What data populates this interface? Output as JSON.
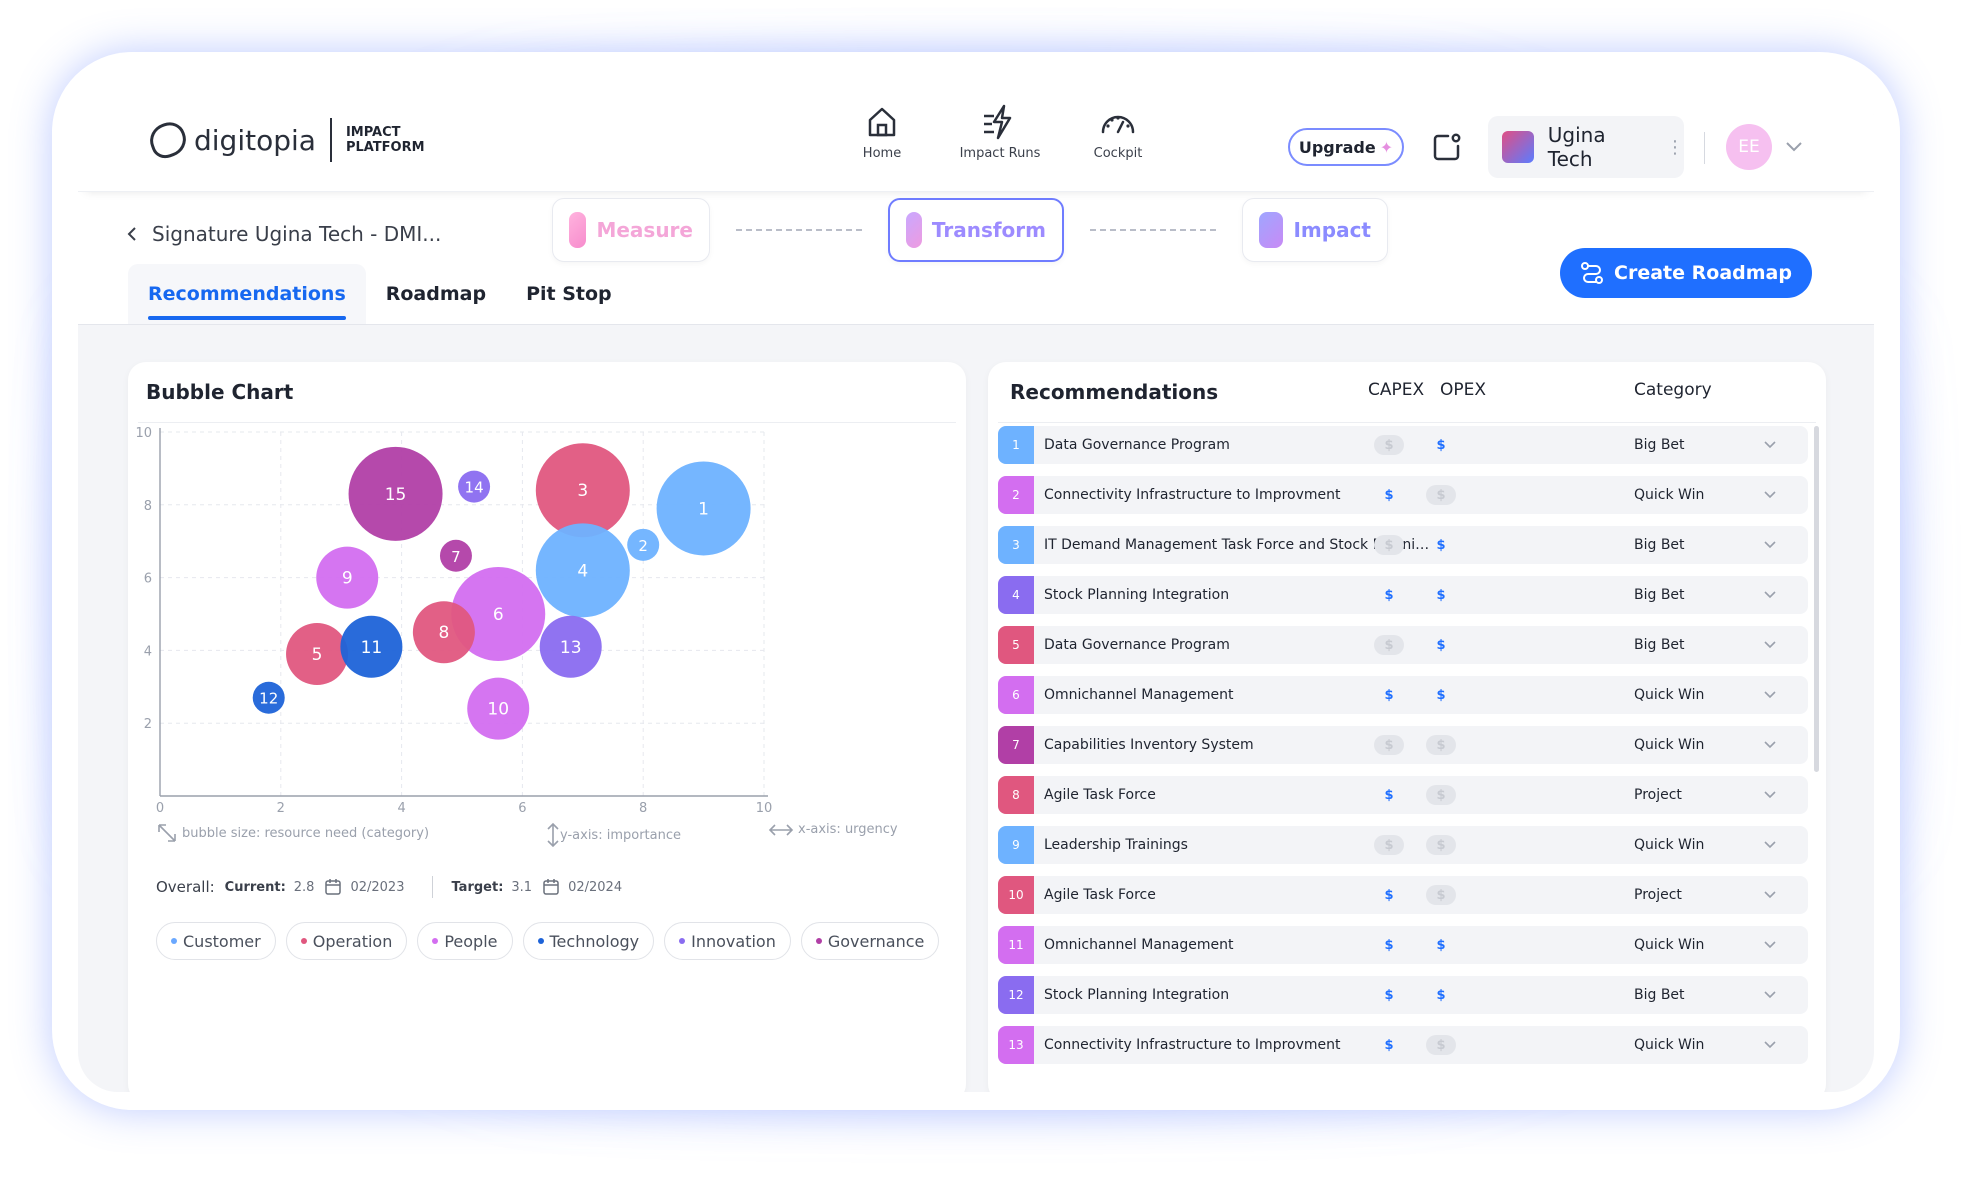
{
  "brand": {
    "name": "digitopia",
    "sub1": "IMPACT",
    "sub2": "PLATFORM"
  },
  "nav": [
    {
      "label": "Home",
      "icon": "home-icon"
    },
    {
      "label": "Impact Runs",
      "icon": "impact-runs-icon"
    },
    {
      "label": "Cockpit",
      "icon": "gauge-icon"
    }
  ],
  "header": {
    "upgrade_label": "Upgrade",
    "org_name": "Ugina Tech",
    "avatar_initials": "EE"
  },
  "breadcrumb": {
    "back_label": "Signature Ugina Tech - DMI..."
  },
  "stepper": {
    "measure": "Measure",
    "transform": "Transform",
    "impact": "Impact"
  },
  "create_roadmap_label": "Create Roadmap",
  "tabs": [
    {
      "label": "Recommendations"
    },
    {
      "label": "Roadmap"
    },
    {
      "label": "Pit Stop"
    }
  ],
  "chart_panel": {
    "title": "Bubble Chart",
    "hint_size": "bubble size: resource need (category)",
    "hint_y": "y-axis: importance",
    "hint_x": "x-axis: urgency",
    "overall_label": "Overall:",
    "current_label": "Current:",
    "current_value": "2.8",
    "current_date": "02/2023",
    "target_label": "Target:",
    "target_value": "3.1",
    "target_date": "02/2024",
    "filters": [
      {
        "label": "Customer",
        "color": "#6aa8ff"
      },
      {
        "label": "Operation",
        "color": "#e0577f"
      },
      {
        "label": "People",
        "color": "#d36ef0"
      },
      {
        "label": "Technology",
        "color": "#1d63d8"
      },
      {
        "label": "Innovation",
        "color": "#8a6cf0"
      },
      {
        "label": "Governance",
        "color": "#b13fa6"
      }
    ]
  },
  "chart_data": {
    "type": "scatter",
    "xlim": [
      0,
      10
    ],
    "ylim": [
      0,
      10
    ],
    "xticks": [
      0,
      2,
      4,
      6,
      8,
      10
    ],
    "yticks": [
      2,
      4,
      6,
      8,
      10
    ],
    "grid": true,
    "points": [
      {
        "id": "1",
        "x": 9.0,
        "y": 7.9,
        "size": 3,
        "color": "#6eb2ff"
      },
      {
        "id": "2",
        "x": 8.0,
        "y": 6.9,
        "size": 1,
        "color": "#6eb2ff"
      },
      {
        "id": "3",
        "x": 7.0,
        "y": 8.4,
        "size": 3,
        "color": "#e0577f"
      },
      {
        "id": "4",
        "x": 7.0,
        "y": 6.2,
        "size": 3,
        "color": "#6eb2ff"
      },
      {
        "id": "5",
        "x": 2.6,
        "y": 3.9,
        "size": 2,
        "color": "#e0577f"
      },
      {
        "id": "6",
        "x": 5.6,
        "y": 5.0,
        "size": 3,
        "color": "#d36ef0"
      },
      {
        "id": "7",
        "x": 4.9,
        "y": 6.6,
        "size": 1,
        "color": "#b13fa6"
      },
      {
        "id": "8",
        "x": 4.7,
        "y": 4.5,
        "size": 2,
        "color": "#e0577f"
      },
      {
        "id": "9",
        "x": 3.1,
        "y": 6.0,
        "size": 2,
        "color": "#d36ef0"
      },
      {
        "id": "10",
        "x": 5.6,
        "y": 2.4,
        "size": 2,
        "color": "#d36ef0"
      },
      {
        "id": "11",
        "x": 3.5,
        "y": 4.1,
        "size": 2,
        "color": "#1d63d8"
      },
      {
        "id": "12",
        "x": 1.8,
        "y": 2.7,
        "size": 1,
        "color": "#1d63d8"
      },
      {
        "id": "13",
        "x": 6.8,
        "y": 4.1,
        "size": 2,
        "color": "#8a6cf0"
      },
      {
        "id": "14",
        "x": 5.2,
        "y": 8.5,
        "size": 1,
        "color": "#8a6cf0"
      },
      {
        "id": "15",
        "x": 3.9,
        "y": 8.3,
        "size": 3,
        "color": "#b13fa6"
      }
    ]
  },
  "rec_panel": {
    "title": "Recommendations",
    "col_capex": "CAPEX",
    "col_opex": "OPEX",
    "col_category": "Category",
    "rows": [
      {
        "num": "1",
        "name": "Data Governance Program",
        "capex": false,
        "opex": true,
        "category": "Big Bet",
        "color": "#6eb2ff"
      },
      {
        "num": "2",
        "name": "Connectivity Infrastructure to Improvment",
        "capex": true,
        "opex": false,
        "category": "Quick Win",
        "color": "#d36ef0"
      },
      {
        "num": "3",
        "name": "IT Demand Management Task Force and Stock Planning I...",
        "capex": false,
        "opex": true,
        "category": "Big Bet",
        "color": "#6eb2ff"
      },
      {
        "num": "4",
        "name": "Stock Planning Integration",
        "capex": true,
        "opex": true,
        "category": "Big Bet",
        "color": "#8a6cf0"
      },
      {
        "num": "5",
        "name": "Data Governance Program",
        "capex": false,
        "opex": true,
        "category": "Big Bet",
        "color": "#e0577f"
      },
      {
        "num": "6",
        "name": "Omnichannel Management",
        "capex": true,
        "opex": true,
        "category": "Quick Win",
        "color": "#d36ef0"
      },
      {
        "num": "7",
        "name": "Capabilities Inventory System",
        "capex": false,
        "opex": false,
        "category": "Quick Win",
        "color": "#b13fa6"
      },
      {
        "num": "8",
        "name": "Agile Task Force",
        "capex": true,
        "opex": false,
        "category": "Project",
        "color": "#e0577f"
      },
      {
        "num": "9",
        "name": "Leadership Trainings",
        "capex": false,
        "opex": false,
        "category": "Quick Win",
        "color": "#6eb2ff"
      },
      {
        "num": "10",
        "name": "Agile Task Force",
        "capex": true,
        "opex": false,
        "category": "Project",
        "color": "#e0577f"
      },
      {
        "num": "11",
        "name": "Omnichannel Management",
        "capex": true,
        "opex": true,
        "category": "Quick Win",
        "color": "#d36ef0"
      },
      {
        "num": "12",
        "name": "Stock Planning Integration",
        "capex": true,
        "opex": true,
        "category": "Big Bet",
        "color": "#8a6cf0"
      },
      {
        "num": "13",
        "name": "Connectivity Infrastructure to Improvment",
        "capex": true,
        "opex": false,
        "category": "Quick Win",
        "color": "#d36ef0"
      }
    ]
  }
}
